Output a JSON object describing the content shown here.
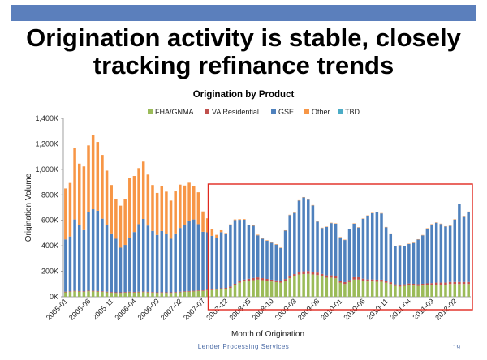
{
  "slide": {
    "title_line1": "Origination activity is stable, closely",
    "title_line2": "tracking refinance trends",
    "footer": "Lender Processing Services",
    "page_number": "19"
  },
  "chart_data": {
    "type": "bar",
    "stacked": true,
    "title": "Origination by Product",
    "xlabel": "Month of Origination",
    "ylabel": "Origination Volume",
    "ylim": [
      0,
      1400000
    ],
    "yticks": [
      0,
      200000,
      400000,
      600000,
      800000,
      1000000,
      1200000,
      1400000
    ],
    "ytick_labels": [
      "0K",
      "200K",
      "400K",
      "600K",
      "800K",
      "1,000K",
      "1,200K",
      "1,400K"
    ],
    "grid": false,
    "legend_position": "top",
    "xtick_labels": [
      "2005-01",
      "2005-06",
      "2005-11",
      "2006-04",
      "2006-09",
      "2007-02",
      "2007-07",
      "2007-12",
      "2008-05",
      "2008-10",
      "2009-03",
      "2009-08",
      "2010-01",
      "2010-06",
      "2010-11",
      "2011-04",
      "2011-09",
      "2012-02"
    ],
    "xtick_start": "2005-01",
    "xtick_step_months": 5,
    "categories": [
      "2005-01",
      "2005-02",
      "2005-03",
      "2005-04",
      "2005-05",
      "2005-06",
      "2005-07",
      "2005-08",
      "2005-09",
      "2005-10",
      "2005-11",
      "2005-12",
      "2006-01",
      "2006-02",
      "2006-03",
      "2006-04",
      "2006-05",
      "2006-06",
      "2006-07",
      "2006-08",
      "2006-09",
      "2006-10",
      "2006-11",
      "2006-12",
      "2007-01",
      "2007-02",
      "2007-03",
      "2007-04",
      "2007-05",
      "2007-06",
      "2007-07",
      "2007-08",
      "2007-09",
      "2007-10",
      "2007-11",
      "2007-12",
      "2008-01",
      "2008-02",
      "2008-03",
      "2008-04",
      "2008-05",
      "2008-06",
      "2008-07",
      "2008-08",
      "2008-09",
      "2008-10",
      "2008-11",
      "2008-12",
      "2009-01",
      "2009-02",
      "2009-03",
      "2009-04",
      "2009-05",
      "2009-06",
      "2009-07",
      "2009-08",
      "2009-09",
      "2009-10",
      "2009-11",
      "2009-12",
      "2010-01",
      "2010-02",
      "2010-03",
      "2010-04",
      "2010-05",
      "2010-06",
      "2010-07",
      "2010-08",
      "2010-09",
      "2010-10",
      "2010-11",
      "2010-12",
      "2011-01",
      "2011-02",
      "2011-03",
      "2011-04",
      "2011-05",
      "2011-06",
      "2011-07",
      "2011-08",
      "2011-09",
      "2011-10",
      "2011-11",
      "2011-12",
      "2012-01",
      "2012-02",
      "2012-03",
      "2012-04",
      "2012-05"
    ],
    "series": [
      {
        "name": "FHA/GNMA",
        "color": "#9BBB59",
        "values": [
          35000,
          38000,
          42000,
          40000,
          38000,
          43000,
          42000,
          40000,
          38000,
          35000,
          32000,
          30000,
          30000,
          32000,
          35000,
          33000,
          35000,
          36000,
          34000,
          32000,
          30000,
          31000,
          30000,
          30000,
          32000,
          35000,
          38000,
          40000,
          42000,
          45000,
          45000,
          50000,
          52000,
          55000,
          60000,
          62000,
          70000,
          90000,
          110000,
          120000,
          125000,
          130000,
          135000,
          130000,
          125000,
          120000,
          115000,
          110000,
          125000,
          145000,
          160000,
          175000,
          178000,
          180000,
          175000,
          170000,
          160000,
          150000,
          150000,
          145000,
          110000,
          100000,
          115000,
          135000,
          135000,
          125000,
          120000,
          120000,
          118000,
          118000,
          110000,
          100000,
          85000,
          80000,
          85000,
          90000,
          88000,
          85000,
          88000,
          90000,
          92000,
          95000,
          95000,
          95000,
          100000,
          100000,
          100000,
          100000,
          100000
        ]
      },
      {
        "name": "VA Residential",
        "color": "#C0504D",
        "values": [
          5000,
          5000,
          5000,
          5000,
          5000,
          5000,
          5000,
          5000,
          5000,
          5000,
          5000,
          5000,
          5000,
          5000,
          5000,
          5000,
          5000,
          5000,
          5000,
          5000,
          5000,
          5000,
          5000,
          5000,
          5000,
          5000,
          5000,
          5000,
          5000,
          5000,
          5000,
          6000,
          6000,
          6000,
          7000,
          8000,
          10000,
          12000,
          14000,
          15000,
          16000,
          17000,
          17000,
          16000,
          15000,
          14000,
          14000,
          13000,
          14000,
          16000,
          18000,
          20000,
          22000,
          22000,
          22000,
          20000,
          19000,
          18000,
          18000,
          18000,
          16000,
          15000,
          16000,
          18000,
          18000,
          17000,
          16000,
          16000,
          16000,
          16000,
          15000,
          14000,
          13000,
          13000,
          13000,
          14000,
          14000,
          14000,
          14000,
          15000,
          15000,
          16000,
          16000,
          16000,
          16000,
          16000,
          16000,
          16000,
          16000
        ]
      },
      {
        "name": "GSE",
        "color": "#4F81BD",
        "values": [
          410000,
          430000,
          560000,
          520000,
          480000,
          620000,
          640000,
          630000,
          570000,
          520000,
          460000,
          420000,
          350000,
          370000,
          420000,
          470000,
          530000,
          570000,
          520000,
          480000,
          450000,
          480000,
          460000,
          420000,
          460000,
          500000,
          520000,
          550000,
          560000,
          520000,
          460000,
          450000,
          420000,
          400000,
          440000,
          420000,
          480000,
          500000,
          480000,
          470000,
          420000,
          410000,
          330000,
          310000,
          300000,
          290000,
          280000,
          260000,
          380000,
          480000,
          480000,
          560000,
          580000,
          560000,
          520000,
          400000,
          360000,
          380000,
          410000,
          410000,
          340000,
          330000,
          400000,
          420000,
          390000,
          470000,
          500000,
          520000,
          530000,
          520000,
          420000,
          380000,
          300000,
          310000,
          300000,
          310000,
          320000,
          350000,
          380000,
          430000,
          460000,
          470000,
          460000,
          440000,
          440000,
          490000,
          610000,
          510000,
          550000
        ]
      },
      {
        "name": "Other",
        "color": "#F79646",
        "values": [
          400000,
          420000,
          560000,
          480000,
          500000,
          520000,
          580000,
          540000,
          500000,
          430000,
          380000,
          310000,
          330000,
          360000,
          470000,
          440000,
          440000,
          450000,
          400000,
          360000,
          330000,
          350000,
          330000,
          300000,
          330000,
          340000,
          310000,
          300000,
          260000,
          250000,
          160000,
          110000,
          55000,
          25000,
          15000,
          10000,
          8000,
          5000,
          5000,
          5000,
          5000,
          5000,
          5000,
          5000,
          4000,
          4000,
          4000,
          3000,
          3000,
          3000,
          3000,
          3000,
          3000,
          3000,
          3000,
          3000,
          3000,
          3000,
          3000,
          3000,
          3000,
          3000,
          3000,
          3000,
          3000,
          3000,
          3000,
          3000,
          3000,
          3000,
          3000,
          3000,
          3000,
          3000,
          3000,
          3000,
          3000,
          3000,
          3000,
          3000,
          3000,
          3000,
          3000,
          3000,
          3000,
          3000,
          3000,
          3000,
          3000
        ]
      },
      {
        "name": "TBD",
        "color": "#4BACC6",
        "values": [
          0,
          0,
          0,
          0,
          0,
          0,
          0,
          0,
          0,
          0,
          0,
          0,
          0,
          0,
          0,
          0,
          0,
          0,
          0,
          0,
          0,
          0,
          0,
          0,
          0,
          0,
          0,
          0,
          0,
          0,
          0,
          0,
          0,
          0,
          0,
          0,
          0,
          0,
          0,
          0,
          0,
          0,
          0,
          0,
          0,
          0,
          0,
          0,
          0,
          0,
          0,
          0,
          0,
          0,
          0,
          0,
          0,
          0,
          0,
          0,
          0,
          0,
          0,
          0,
          0,
          0,
          0,
          0,
          0,
          0,
          0,
          0,
          0,
          0,
          0,
          0,
          0,
          0,
          0,
          0,
          0,
          0,
          0,
          0,
          0,
          0,
          0,
          0,
          0
        ]
      }
    ],
    "highlight": {
      "from": "2007-09",
      "to": "2012-05",
      "color": "#E0281E"
    }
  }
}
